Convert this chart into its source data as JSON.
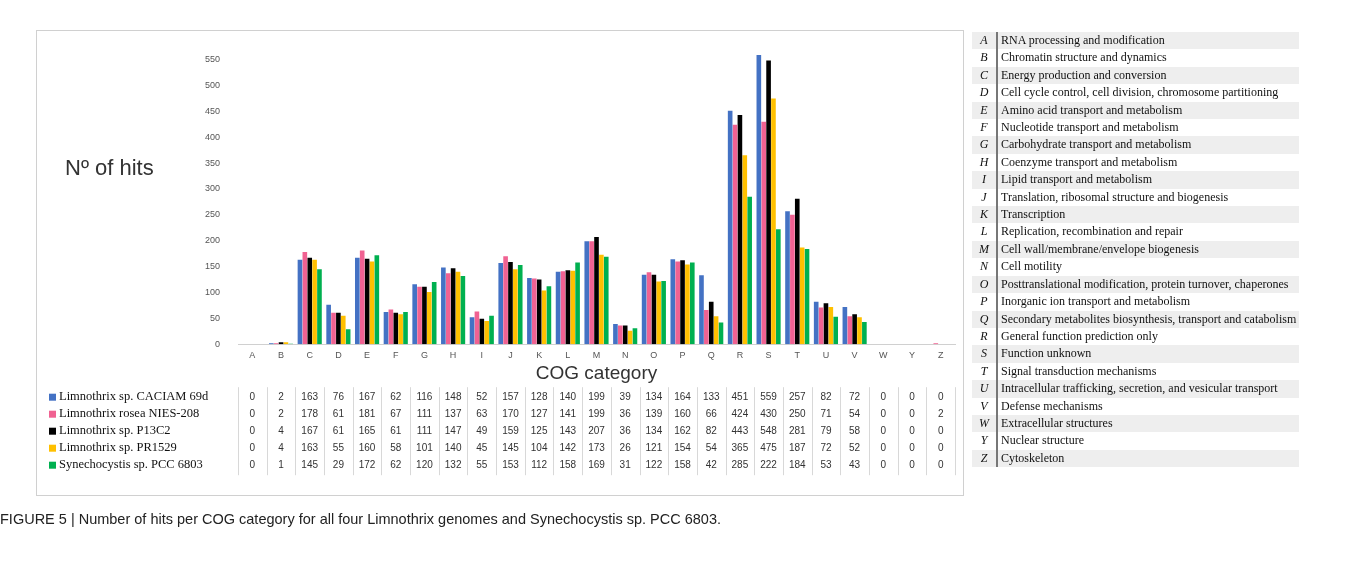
{
  "chart_data": {
    "type": "bar",
    "title": "FIGURE 5 | Number of hits per COG category for all four Limnothrix genomes and Synechocystis sp. PCC 6803.",
    "xlabel": "COG category",
    "ylabel": "Nº of hits",
    "categories": [
      "A",
      "B",
      "C",
      "D",
      "E",
      "F",
      "G",
      "H",
      "I",
      "J",
      "K",
      "L",
      "M",
      "N",
      "O",
      "P",
      "Q",
      "R",
      "S",
      "T",
      "U",
      "V",
      "W",
      "Y",
      "Z"
    ],
    "series": [
      {
        "name": "Limnothrix sp. CACIAM 69d",
        "color": "#4472c4",
        "values": [
          0,
          2,
          163,
          76,
          167,
          62,
          116,
          148,
          52,
          157,
          128,
          140,
          199,
          39,
          134,
          164,
          133,
          451,
          559,
          257,
          82,
          72,
          0,
          0,
          0
        ]
      },
      {
        "name": "Limnothrix rosea NIES-208",
        "color": "#f06292",
        "values": [
          0,
          2,
          178,
          61,
          181,
          67,
          111,
          137,
          63,
          170,
          127,
          141,
          199,
          36,
          139,
          160,
          66,
          424,
          430,
          250,
          71,
          54,
          0,
          0,
          2
        ]
      },
      {
        "name": "Limnothrix sp. P13C2",
        "color": "#000000",
        "values": [
          0,
          4,
          167,
          61,
          165,
          61,
          111,
          147,
          49,
          159,
          125,
          143,
          207,
          36,
          134,
          162,
          82,
          443,
          548,
          281,
          79,
          58,
          0,
          0,
          0
        ]
      },
      {
        "name": "Limnothrix sp. PR1529",
        "color": "#ffc000",
        "values": [
          0,
          4,
          163,
          55,
          160,
          58,
          101,
          140,
          45,
          145,
          104,
          142,
          173,
          26,
          121,
          154,
          54,
          365,
          475,
          187,
          72,
          52,
          0,
          0,
          0
        ]
      },
      {
        "name": "Synechocystis sp. PCC 6803",
        "color": "#00b050",
        "values": [
          0,
          1,
          145,
          29,
          172,
          62,
          120,
          132,
          55,
          153,
          112,
          158,
          169,
          31,
          122,
          158,
          42,
          285,
          222,
          184,
          53,
          43,
          0,
          0,
          0
        ]
      }
    ],
    "ylim": [
      0,
      560
    ],
    "yticks": [
      0,
      50,
      100,
      150,
      200,
      250,
      300,
      350,
      400,
      450,
      500,
      550
    ],
    "grid": false,
    "legend": "bottom left",
    "data_labels": true,
    "annotations": [
      "RNA processing and modification",
      "Chromatin structure and dynamics",
      "Energy production and conversion",
      "Cell cycle control, cell division, chromosome partitioning",
      "Amino acid transport and metabolism",
      "Nucleotide transport and metabolism",
      "Carbohydrate transport and metabolism",
      "Coenzyme transport and metabolism",
      "Lipid transport and metabolism",
      "Translation, ribosomal structure and biogenesis",
      "Transcription",
      "Replication, recombination and repair",
      "Cell wall/membrane/envelope biogenesis",
      "Cell motility",
      "Posttranslational modification, protein turnover, chaperones",
      "Inorganic ion transport and metabolism",
      "Secondary metabolites biosynthesis, transport and catabolism",
      "General function prediction only",
      "Function unknown",
      "Signal transduction mechanisms",
      "Intracellular trafficking, secretion, and vesicular transport",
      "Defense mechanisms",
      "Extracellular structures",
      "Nuclear structure",
      "Cytoskeleton"
    ]
  }
}
